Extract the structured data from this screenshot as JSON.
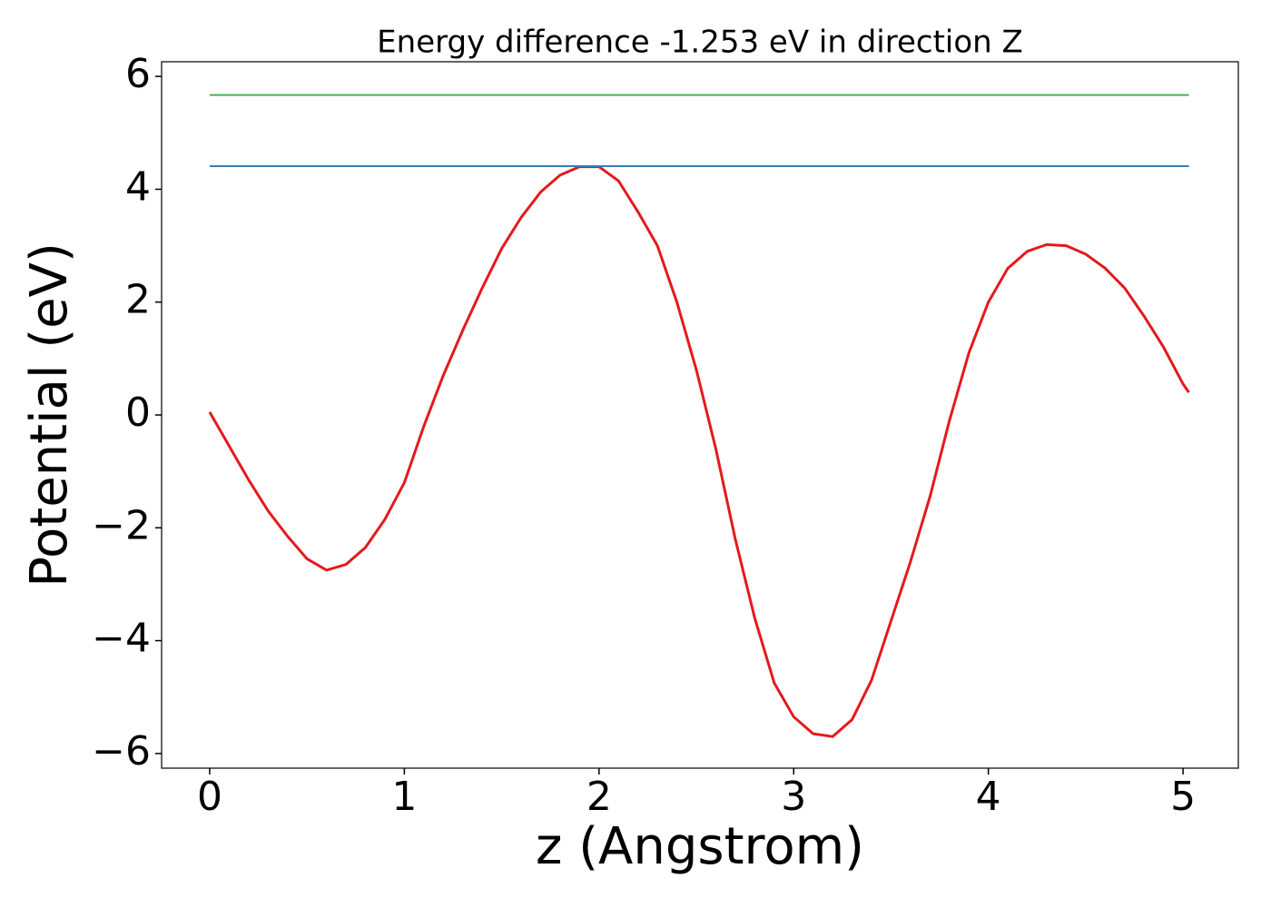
{
  "chart_data": {
    "type": "line",
    "title": "Energy difference -1.253 eV in direction Z",
    "x_label": "z (Angstrom)",
    "y_label": "Potential (eV)",
    "xlim": [
      -0.247,
      5.284
    ],
    "ylim": [
      -6.26,
      6.26
    ],
    "xticks": [
      0,
      1,
      2,
      3,
      4,
      5
    ],
    "yticks": [
      {
        "value": -6,
        "label": "−6"
      },
      {
        "value": -4,
        "label": "−4"
      },
      {
        "value": -2,
        "label": "−2"
      },
      0,
      2,
      4,
      6
    ],
    "series": [
      {
        "color": "#e41a1c",
        "x": [
          0,
          0.1,
          0.2,
          0.3,
          0.4,
          0.5,
          0.6,
          0.7,
          0.8,
          0.9,
          1.0,
          1.1,
          1.2,
          1.3,
          1.4,
          1.5,
          1.6,
          1.7,
          1.8,
          1.9,
          2.0,
          2.1,
          2.2,
          2.3,
          2.4,
          2.5,
          2.6,
          2.7,
          2.8,
          2.9,
          3.0,
          3.1,
          3.2,
          3.3,
          3.4,
          3.5,
          3.6,
          3.7,
          3.8,
          3.9,
          4.0,
          4.1,
          4.2,
          4.3,
          4.4,
          4.5,
          4.6,
          4.7,
          4.8,
          4.9,
          5.0,
          5.03
        ],
        "values": [
          0.05,
          -0.55,
          -1.15,
          -1.7,
          -2.15,
          -2.55,
          -2.75,
          -2.65,
          -2.35,
          -1.85,
          -1.2,
          -0.2,
          0.7,
          1.5,
          2.25,
          2.95,
          3.5,
          3.95,
          4.25,
          4.4,
          4.4,
          4.15,
          3.6,
          3.0,
          2.0,
          0.8,
          -0.6,
          -2.2,
          -3.6,
          -4.75,
          -5.35,
          -5.65,
          -5.7,
          -5.4,
          -4.7,
          -3.65,
          -2.6,
          -1.45,
          -0.1,
          1.1,
          2.0,
          2.6,
          2.9,
          3.02,
          3.0,
          2.85,
          2.6,
          2.25,
          1.75,
          1.2,
          0.55,
          0.4
        ]
      },
      {
        "color": "#377eb8",
        "x": [
          0,
          5.03
        ],
        "values": [
          4.41,
          4.41
        ]
      },
      {
        "color": "#4daf4a",
        "x": [
          0,
          5.03
        ],
        "values": [
          5.67,
          5.67
        ]
      }
    ]
  }
}
